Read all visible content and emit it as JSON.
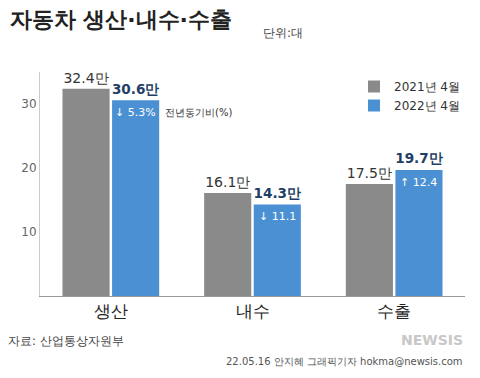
{
  "chart_data": {
    "type": "bar",
    "title": "자동차 생산·내수·수출",
    "unit": "단위:대",
    "categories": [
      "생산",
      "내수",
      "수출"
    ],
    "series": [
      {
        "name": "2021년 4월",
        "color": "#8a8a8a",
        "values": [
          32.4,
          16.1,
          17.5
        ],
        "value_labels": [
          "32.4만",
          "16.1만",
          "17.5만"
        ]
      },
      {
        "name": "2022년 4월",
        "color": "#4a90d2",
        "values": [
          30.6,
          14.3,
          19.7
        ],
        "value_labels": [
          "30.6만",
          "14.3만",
          "19.7만"
        ]
      }
    ],
    "annotations": [
      {
        "category": "생산",
        "text": "↓ 5.3%"
      },
      {
        "category": "내수",
        "text": "↓ 11.1"
      },
      {
        "category": "수출",
        "text": "↑ 12.4"
      }
    ],
    "change_label": "전년동기비(%)",
    "ylim": [
      0,
      35
    ],
    "yticks": [
      10,
      20,
      30
    ],
    "grid": false,
    "legend": "top right",
    "data_labels": true,
    "source": "자료: 산업통상자원부",
    "credit": "22.05.16 안지혜 그래픽기자 hokma@newsis.com",
    "watermark": "NEWSIS"
  }
}
